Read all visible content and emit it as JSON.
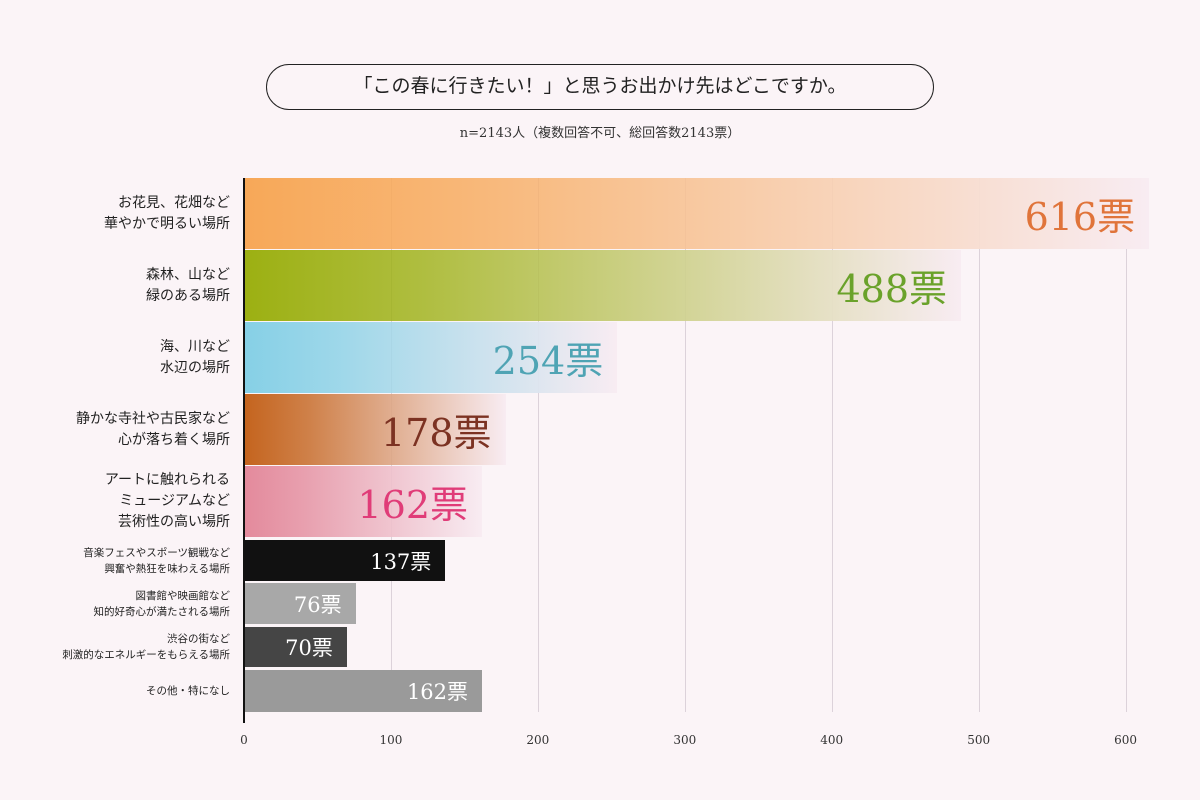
{
  "chart_data": {
    "type": "hbar",
    "title": "「この春に行きたい！」と思うお出かけ先はどこですか。",
    "subtitle": "n=2143人（複数回答不可、総回答数2143票）",
    "categories": [
      "お花見、花畑など\n華やかで明るい場所",
      "森林、山など\n緑のある場所",
      "海、川など\n水辺の場所",
      "静かな寺社や古民家など\n心が落ち着く場所",
      "アートに触れられる\nミュージアムなど\n芸術性の高い場所",
      "音楽フェスやスポーツ観戦など\n興奮や熱狂を味わえる場所",
      "図書館や映画館など\n知的好奇心が満たされる場所",
      "渋谷の街など\n刺激的なエネルギーをもらえる場所",
      "その他・特になし"
    ],
    "values": [
      616,
      488,
      254,
      178,
      162,
      137,
      76,
      70,
      162
    ],
    "value_labels": [
      "616票",
      "488票",
      "254票",
      "178票",
      "162票",
      "137票",
      "76票",
      "70票",
      "162票"
    ],
    "colors": [
      "#f7a858",
      "#9cb012",
      "#86d0e6",
      "#c4641e",
      "#e38a9c",
      "#111111",
      "#a8a8a8",
      "#454545",
      "#9a9a9a"
    ],
    "label_colors": [
      "#e0743a",
      "#6aa22a",
      "#4fa4b4",
      "#7c3222",
      "#e03c78",
      "#ffffff",
      "#ffffff",
      "#ffffff",
      "#ffffff"
    ],
    "xlim": [
      0,
      620
    ],
    "xticks": [
      0,
      100,
      200,
      300,
      400,
      500,
      600
    ],
    "grid": true
  }
}
